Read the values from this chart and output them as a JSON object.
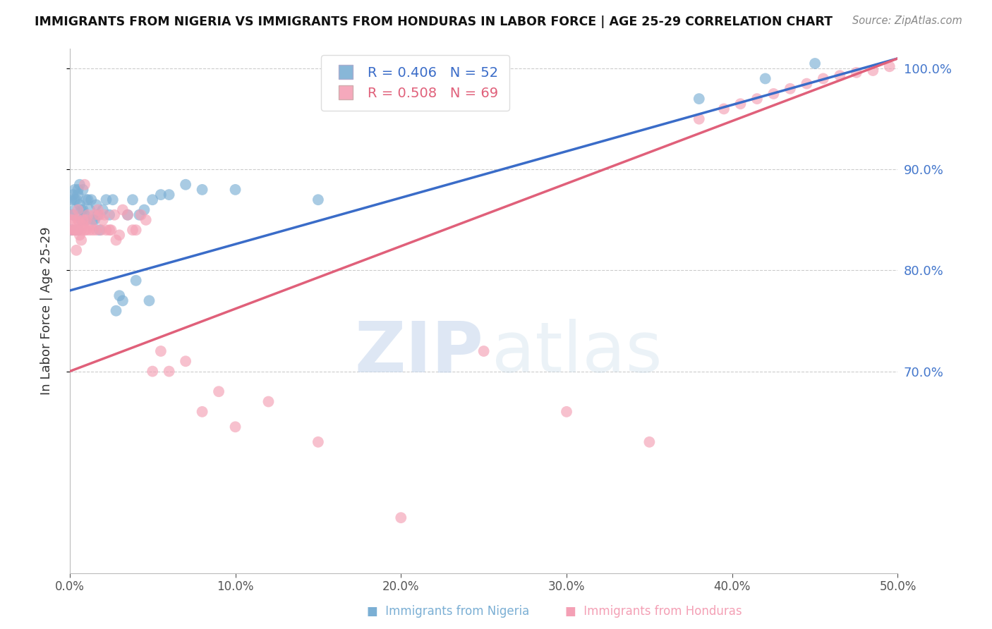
{
  "title": "IMMIGRANTS FROM NIGERIA VS IMMIGRANTS FROM HONDURAS IN LABOR FORCE | AGE 25-29 CORRELATION CHART",
  "source": "Source: ZipAtlas.com",
  "ylabel": "In Labor Force | Age 25-29",
  "xlim": [
    0.0,
    0.5
  ],
  "ylim": [
    0.5,
    1.02
  ],
  "yticks": [
    0.7,
    0.8,
    0.9,
    1.0
  ],
  "xticks": [
    0.0,
    0.1,
    0.2,
    0.3,
    0.4,
    0.5
  ],
  "nigeria_color": "#7bafd4",
  "honduras_color": "#f4a0b5",
  "nigeria_line_color": "#3a6cc8",
  "honduras_line_color": "#e0607a",
  "nigeria_R": 0.406,
  "nigeria_N": 52,
  "honduras_R": 0.508,
  "honduras_N": 69,
  "nigeria_line_x0": 0.0,
  "nigeria_line_y0": 0.78,
  "nigeria_line_x1": 0.5,
  "nigeria_line_y1": 1.01,
  "honduras_line_x0": 0.0,
  "honduras_line_y0": 0.7,
  "honduras_line_x1": 0.5,
  "honduras_line_y1": 1.01,
  "nigeria_x": [
    0.001,
    0.001,
    0.002,
    0.002,
    0.003,
    0.003,
    0.003,
    0.004,
    0.004,
    0.005,
    0.005,
    0.005,
    0.006,
    0.006,
    0.007,
    0.007,
    0.008,
    0.008,
    0.009,
    0.01,
    0.01,
    0.011,
    0.012,
    0.013,
    0.014,
    0.015,
    0.016,
    0.017,
    0.018,
    0.02,
    0.022,
    0.024,
    0.026,
    0.028,
    0.03,
    0.032,
    0.035,
    0.038,
    0.04,
    0.042,
    0.045,
    0.048,
    0.05,
    0.055,
    0.06,
    0.07,
    0.08,
    0.1,
    0.15,
    0.38,
    0.42,
    0.45
  ],
  "nigeria_y": [
    0.84,
    0.87,
    0.855,
    0.875,
    0.86,
    0.87,
    0.88,
    0.84,
    0.87,
    0.84,
    0.875,
    0.88,
    0.865,
    0.885,
    0.85,
    0.86,
    0.86,
    0.88,
    0.855,
    0.85,
    0.87,
    0.87,
    0.86,
    0.87,
    0.85,
    0.85,
    0.865,
    0.855,
    0.84,
    0.86,
    0.87,
    0.855,
    0.87,
    0.76,
    0.775,
    0.77,
    0.855,
    0.87,
    0.79,
    0.855,
    0.86,
    0.77,
    0.87,
    0.875,
    0.875,
    0.885,
    0.88,
    0.88,
    0.87,
    0.97,
    0.99,
    1.005
  ],
  "honduras_x": [
    0.001,
    0.001,
    0.002,
    0.002,
    0.003,
    0.003,
    0.004,
    0.004,
    0.005,
    0.005,
    0.005,
    0.006,
    0.006,
    0.007,
    0.007,
    0.008,
    0.008,
    0.009,
    0.009,
    0.01,
    0.01,
    0.011,
    0.012,
    0.013,
    0.014,
    0.015,
    0.016,
    0.017,
    0.018,
    0.019,
    0.02,
    0.021,
    0.022,
    0.024,
    0.025,
    0.027,
    0.028,
    0.03,
    0.032,
    0.035,
    0.038,
    0.04,
    0.043,
    0.046,
    0.05,
    0.055,
    0.06,
    0.07,
    0.08,
    0.09,
    0.1,
    0.12,
    0.15,
    0.2,
    0.25,
    0.3,
    0.35,
    0.38,
    0.395,
    0.405,
    0.415,
    0.425,
    0.435,
    0.445,
    0.455,
    0.465,
    0.475,
    0.485,
    0.495
  ],
  "honduras_y": [
    0.84,
    0.85,
    0.84,
    0.855,
    0.84,
    0.85,
    0.82,
    0.84,
    0.84,
    0.85,
    0.86,
    0.835,
    0.848,
    0.83,
    0.84,
    0.845,
    0.85,
    0.84,
    0.885,
    0.84,
    0.85,
    0.855,
    0.84,
    0.845,
    0.84,
    0.855,
    0.84,
    0.86,
    0.855,
    0.84,
    0.85,
    0.855,
    0.84,
    0.84,
    0.84,
    0.855,
    0.83,
    0.835,
    0.86,
    0.855,
    0.84,
    0.84,
    0.855,
    0.85,
    0.7,
    0.72,
    0.7,
    0.71,
    0.66,
    0.68,
    0.645,
    0.67,
    0.63,
    0.555,
    0.72,
    0.66,
    0.63,
    0.95,
    0.96,
    0.965,
    0.97,
    0.975,
    0.98,
    0.985,
    0.99,
    0.993,
    0.996,
    0.998,
    1.002
  ]
}
